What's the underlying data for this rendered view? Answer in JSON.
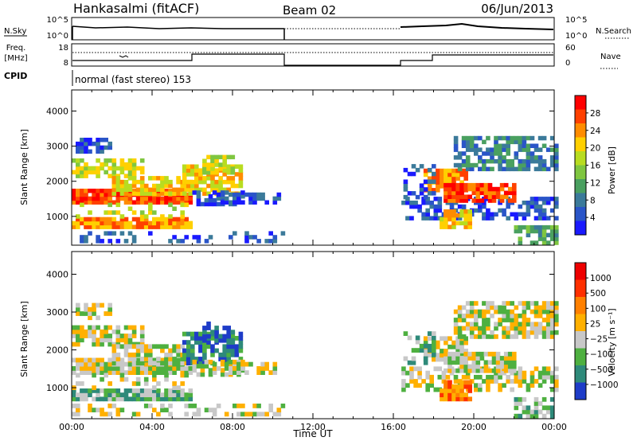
{
  "header": {
    "station": "Hankasalmi (fitACF)",
    "beam": "Beam 02",
    "date": "06/Jun/2013"
  },
  "panel_labels": {
    "nsky": "N.Sky",
    "freq_l1": "Freq.",
    "freq_l2": "[MHz]",
    "cpid": "CPID",
    "nsearch": "N.Search",
    "nave": "Nave",
    "cpid_text": "normal (fast stereo) 153",
    "nsky_ticks": [
      "10^5",
      "10^0"
    ],
    "nsearch_ticks": [
      "10^5",
      "10^0"
    ],
    "freq_ticks": [
      "18",
      "8"
    ],
    "nave_ticks": [
      "60",
      "0"
    ]
  },
  "chart_data": [
    {
      "type": "heatmap",
      "name": "power",
      "ylabel": "Slant Range [km]",
      "xlabel": "",
      "yticks": [
        "4000",
        "3000",
        "2000",
        "1000"
      ],
      "ylim": [
        180,
        4600
      ],
      "colorbar_label": "Power [dB]",
      "colorbar_ticks": [
        "28",
        "24",
        "20",
        "16",
        "12",
        "8",
        "4"
      ],
      "colors": [
        "#1a1aff",
        "#2a55c8",
        "#3b7a9a",
        "#4aa060",
        "#7fc640",
        "#b8dc20",
        "#ffd000",
        "#ff8c00",
        "#ff4000",
        "#ff0000"
      ]
    },
    {
      "type": "heatmap",
      "name": "velocity",
      "ylabel": "Slant Range [km]",
      "xlabel": "Time UT",
      "yticks": [
        "4000",
        "3000",
        "2000",
        "1000"
      ],
      "ylim": [
        180,
        4600
      ],
      "xticks": [
        "00:00",
        "04:00",
        "08:00",
        "12:00",
        "16:00",
        "20:00",
        "00:00"
      ],
      "colorbar_label": "Velocity [m s⁻¹]",
      "colorbar_ticks": [
        "1000",
        "500",
        "100",
        "25",
        "−25",
        "−100",
        "−500",
        "−1000"
      ],
      "colors": [
        "#1e3cc8",
        "#2e8a7a",
        "#4eb040",
        "#c8c8c8",
        "#ffb000",
        "#ff8000",
        "#ff3000",
        "#ee0000"
      ]
    }
  ]
}
